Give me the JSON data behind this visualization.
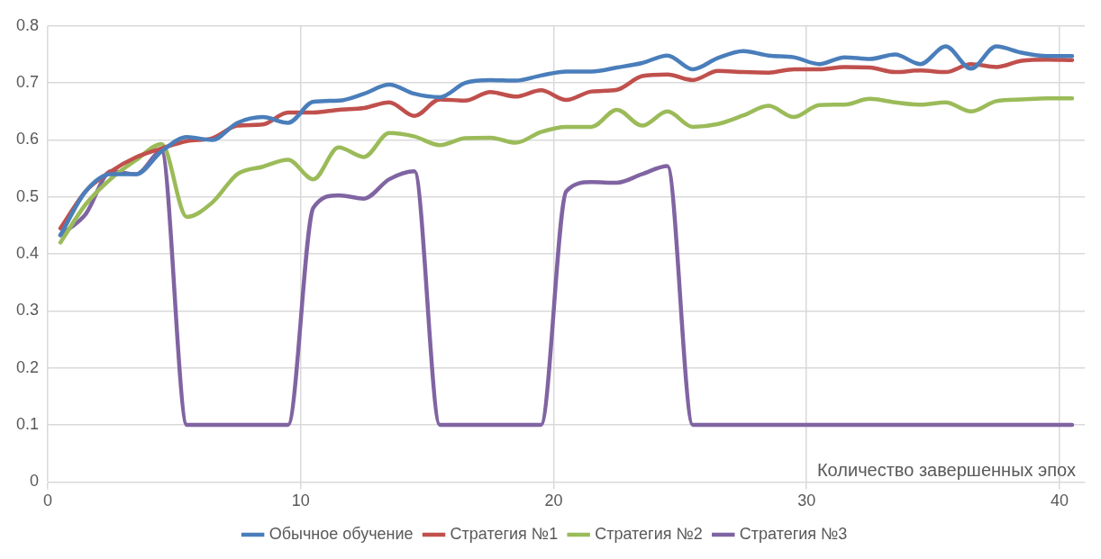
{
  "chart_data": {
    "type": "line",
    "xlabel": "Количество завершенных эпох",
    "x": [
      0.5,
      1.5,
      2.5,
      3.5,
      4.5,
      5.5,
      6.5,
      7.5,
      8.5,
      9.5,
      10.5,
      11.5,
      12.5,
      13.5,
      14.5,
      15.5,
      16.5,
      17.5,
      18.5,
      19.5,
      20.5,
      21.5,
      22.5,
      23.5,
      24.5,
      25.5,
      26.5,
      27.5,
      28.5,
      29.5,
      30.5,
      31.5,
      32.5,
      33.5,
      34.5,
      35.5,
      36.5,
      37.5,
      38.5,
      39.5,
      40.5
    ],
    "series": [
      {
        "name": "Обычное обучение",
        "color": "#4a7ebb",
        "values": [
          0.433,
          0.51,
          0.54,
          0.54,
          0.58,
          0.605,
          0.6,
          0.63,
          0.64,
          0.63,
          0.667,
          0.669,
          0.681,
          0.697,
          0.681,
          0.675,
          0.7,
          0.705,
          0.704,
          0.713,
          0.72,
          0.72,
          0.727,
          0.735,
          0.748,
          0.724,
          0.744,
          0.756,
          0.748,
          0.745,
          0.733,
          0.745,
          0.742,
          0.75,
          0.733,
          0.764,
          0.725,
          0.764,
          0.753,
          0.747,
          0.747
        ]
      },
      {
        "name": "Стратегия №1",
        "color": "#c0504d",
        "values": [
          0.445,
          0.51,
          0.545,
          0.57,
          0.585,
          0.598,
          0.603,
          0.625,
          0.627,
          0.648,
          0.648,
          0.653,
          0.656,
          0.666,
          0.642,
          0.671,
          0.669,
          0.684,
          0.676,
          0.687,
          0.67,
          0.685,
          0.688,
          0.712,
          0.715,
          0.705,
          0.721,
          0.719,
          0.718,
          0.724,
          0.724,
          0.728,
          0.727,
          0.719,
          0.722,
          0.719,
          0.733,
          0.728,
          0.739,
          0.741,
          0.74
        ]
      },
      {
        "name": "Стратегия №2",
        "color": "#9bbb59",
        "values": [
          0.42,
          0.487,
          0.532,
          0.565,
          0.593,
          0.465,
          0.49,
          0.54,
          0.553,
          0.565,
          0.531,
          0.587,
          0.57,
          0.612,
          0.606,
          0.591,
          0.603,
          0.604,
          0.595,
          0.614,
          0.623,
          0.623,
          0.653,
          0.625,
          0.65,
          0.623,
          0.628,
          0.643,
          0.66,
          0.64,
          0.661,
          0.662,
          0.672,
          0.666,
          0.662,
          0.666,
          0.65,
          0.668,
          0.671,
          0.673,
          0.673
        ]
      },
      {
        "name": "Стратегия №3",
        "color": "#8064a2",
        "values": [
          0.433,
          0.47,
          0.545,
          0.54,
          0.58,
          0.1,
          0.1,
          0.1,
          0.1,
          0.1,
          0.481,
          0.503,
          0.497,
          0.531,
          0.545,
          0.1,
          0.1,
          0.1,
          0.1,
          0.1,
          0.51,
          0.526,
          0.525,
          0.54,
          0.554,
          0.1,
          0.1,
          0.1,
          0.1,
          0.1,
          0.1,
          0.1,
          0.1,
          0.1,
          0.1,
          0.1,
          0.1,
          0.1,
          0.1,
          0.1,
          0.1
        ]
      }
    ],
    "xlim": [
      0,
      41
    ],
    "xticks": [
      0,
      10,
      20,
      30,
      40
    ],
    "ylim": [
      0,
      0.8
    ],
    "yticks": [
      0,
      0.1,
      0.2,
      0.3,
      0.4,
      0.5,
      0.6,
      0.7,
      0.8
    ],
    "grid": true,
    "legend": "bottom",
    "marker": "none",
    "line_style": "solid"
  }
}
